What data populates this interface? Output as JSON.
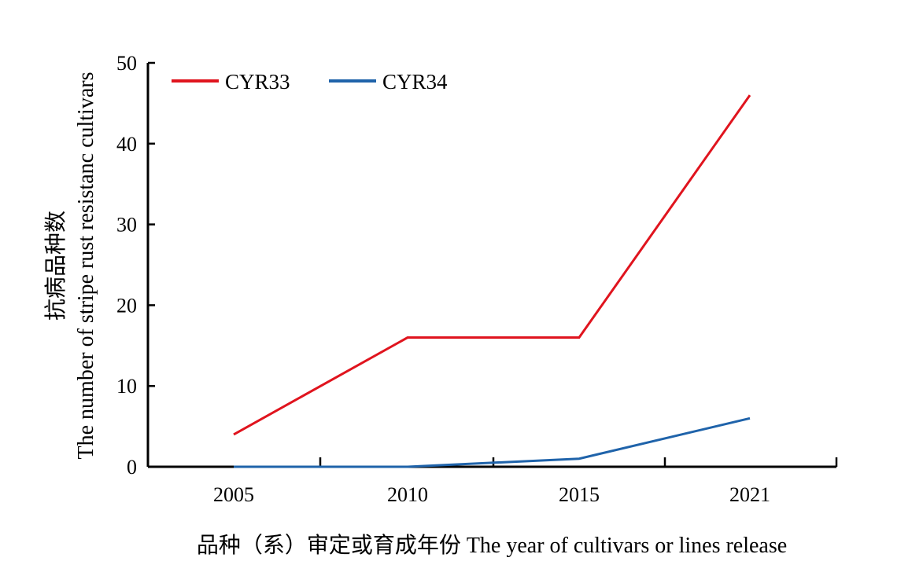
{
  "chart_data": {
    "type": "line",
    "categories": [
      "2005",
      "2010",
      "2015",
      "2021"
    ],
    "series": [
      {
        "name": "CYR33",
        "color": "#e0141e",
        "values": [
          4,
          16,
          16,
          46
        ]
      },
      {
        "name": "CYR34",
        "color": "#1f63aa",
        "values": [
          0,
          0,
          1,
          6
        ]
      }
    ],
    "xlabel": "品种（系）审定或育成年份 The year of cultivars or lines release",
    "ylabel_line1": "抗病品种数",
    "ylabel_line2": "The number of stripe rust resistanc cultivars",
    "ylim": [
      0,
      50
    ],
    "yticks": [
      0,
      10,
      20,
      30,
      40,
      50
    ],
    "grid": false,
    "legend_position": "top-left"
  }
}
